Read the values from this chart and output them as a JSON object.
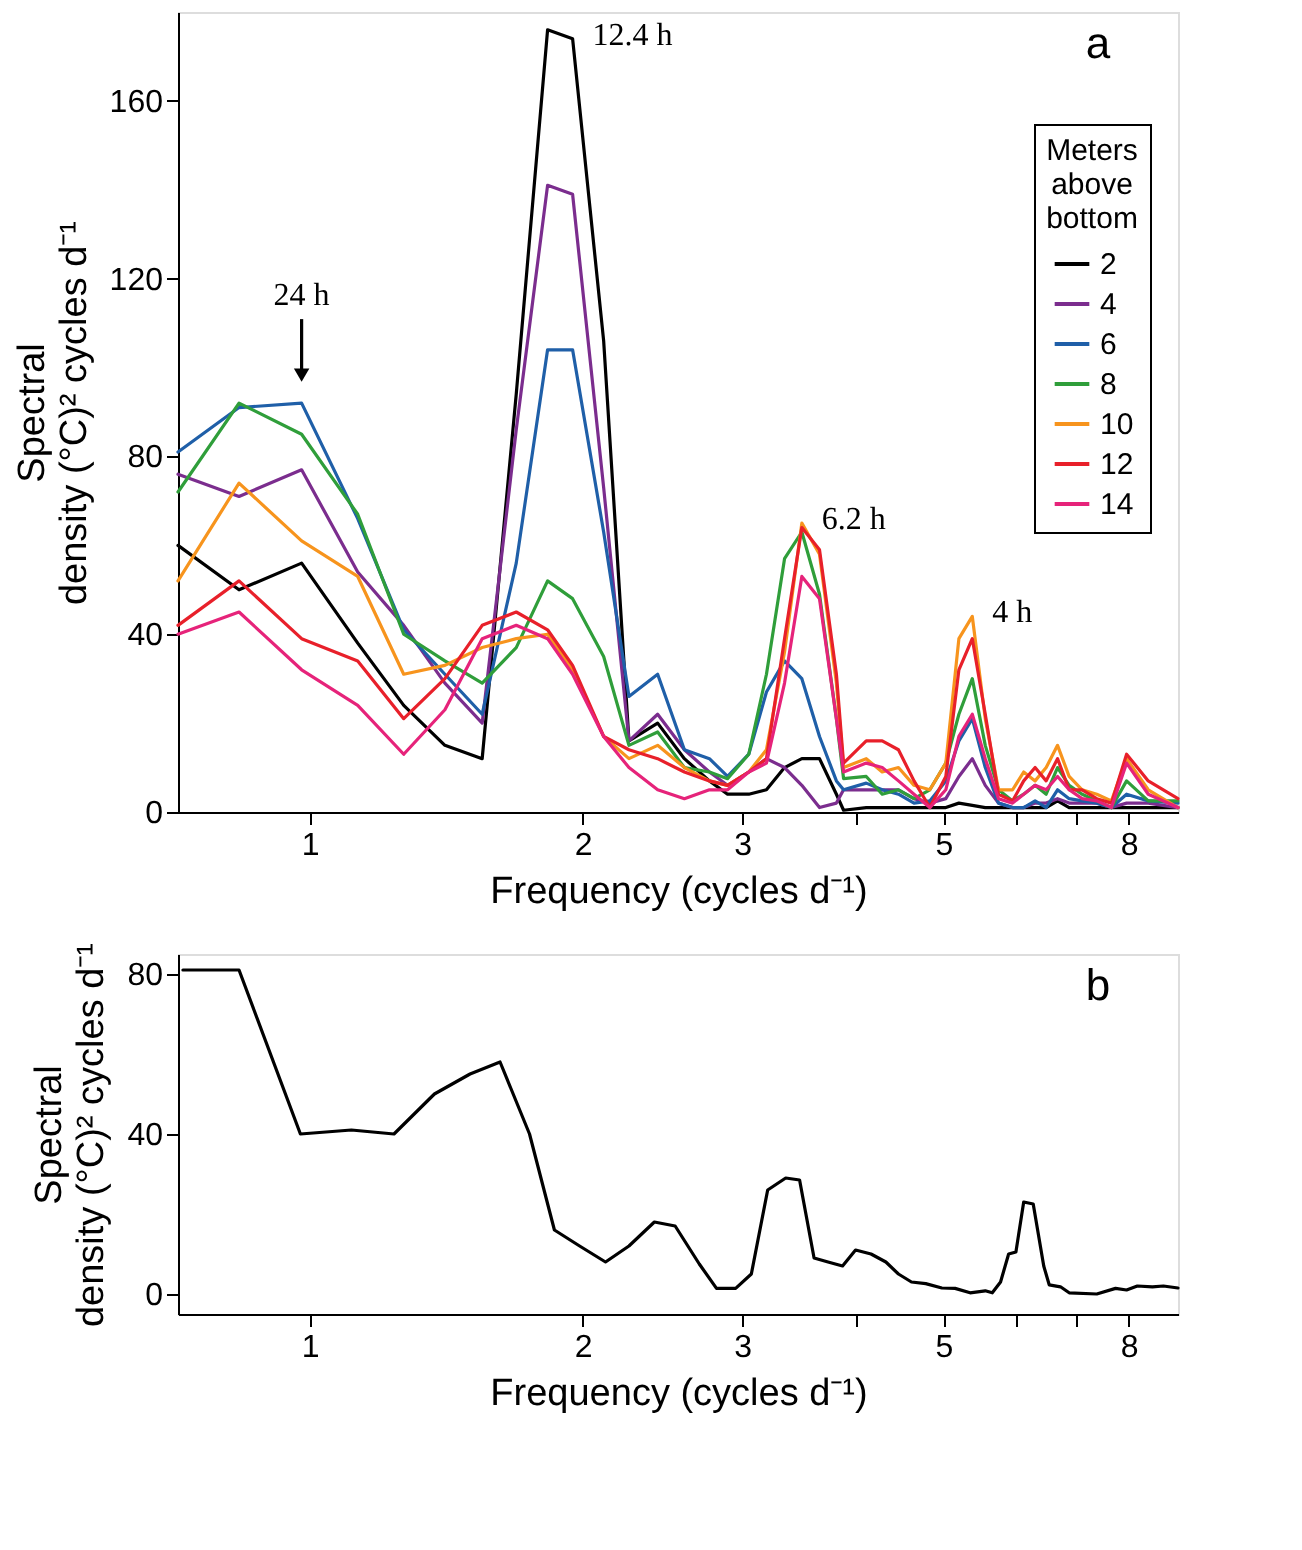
{
  "chart_data": [
    {
      "type": "line",
      "xlabel": "Frequency (cycles d⁻¹)",
      "ylabel": "Spectral density (°C)² cycles d⁻¹",
      "legend_title": "Meters above bottom",
      "legend": "right",
      "grid": false,
      "marker": "none",
      "line_style": "solid",
      "log": "x",
      "x": [
        0.716,
        0.836,
        0.98,
        1.13,
        1.27,
        1.41,
        1.55,
        1.69,
        1.83,
        1.95,
        2.11,
        2.25,
        2.42,
        2.59,
        2.76,
        2.89,
        3.05,
        3.19,
        3.34,
        3.49,
        3.65,
        3.81,
        3.88,
        4.11,
        4.28,
        4.46,
        4.64,
        4.83,
        5.03,
        5.2,
        5.38,
        5.56,
        5.75,
        5.96,
        6.13,
        6.31,
        6.49,
        6.68,
        6.88,
        7.11,
        7.38,
        7.66,
        7.96,
        8.41,
        9.07
      ],
      "xlim": [
        0.716,
        9.07
      ],
      "xticks": [
        1,
        2,
        3,
        {
          "value": 4,
          "label": null
        },
        5,
        {
          "value": 6,
          "label": null
        },
        {
          "value": 7,
          "label": null
        },
        8
      ],
      "ylim": [
        0,
        180
      ],
      "yticks": [
        0,
        40,
        80,
        120,
        160
      ],
      "series": [
        {
          "name": "2",
          "color": "#000000",
          "values": [
            60,
            50,
            56,
            38,
            24,
            15,
            12,
            94,
            176,
            174,
            106,
            16,
            20,
            12,
            7,
            4,
            4,
            5,
            10,
            12,
            12,
            4,
            0.4,
            1,
            1,
            1,
            1,
            1,
            1,
            2,
            1.5,
            1,
            1,
            1,
            1,
            1,
            1,
            2.5,
            1,
            1,
            1,
            1,
            1,
            1,
            1
          ]
        },
        {
          "name": "4",
          "color": "#7b2d8e",
          "values": [
            76,
            71,
            77,
            54,
            42,
            29,
            20,
            86,
            141,
            139,
            73,
            16,
            22,
            14,
            9,
            6,
            9,
            12,
            10,
            6,
            1,
            2,
            5,
            5,
            5,
            5,
            3,
            2,
            3,
            8,
            12,
            6,
            2,
            1,
            1,
            2,
            2,
            3,
            2,
            2,
            2,
            1,
            2,
            2,
            1
          ]
        },
        {
          "name": "6",
          "color": "#1f5fa8",
          "values": [
            81,
            91,
            92,
            66,
            41,
            31,
            22,
            56,
            104,
            104,
            63,
            26,
            31,
            14,
            12,
            8,
            13,
            27,
            34,
            30,
            17,
            7,
            5,
            6.5,
            5,
            4,
            2,
            2.5,
            7,
            16,
            21,
            10,
            2,
            1,
            1,
            2.5,
            1,
            5,
            3,
            2.5,
            2,
            1,
            4,
            2.5,
            2
          ]
        },
        {
          "name": "8",
          "color": "#2f9e3a",
          "values": [
            72,
            92,
            85,
            67,
            40,
            34,
            29,
            37,
            52,
            48,
            35,
            15,
            18,
            10,
            9,
            7.5,
            13,
            31,
            57,
            63,
            49,
            21,
            7.5,
            8,
            4,
            5,
            3,
            5,
            11,
            22,
            30,
            15,
            5,
            2.5,
            4,
            6,
            4,
            10,
            6,
            4,
            2.5,
            1,
            7,
            2.5,
            2.5
          ]
        },
        {
          "name": "10",
          "color": "#f7941d",
          "values": [
            52,
            74,
            61,
            53,
            31,
            33,
            37,
            39,
            40,
            32,
            17,
            12,
            15,
            10,
            7,
            6,
            9,
            14,
            36,
            65,
            58,
            29,
            10,
            12,
            9,
            10,
            6,
            5,
            11,
            39,
            44,
            21,
            5,
            5,
            9,
            7,
            10,
            15,
            8,
            5,
            4,
            2.5,
            12,
            5,
            1
          ]
        },
        {
          "name": "12",
          "color": "#e8202a",
          "values": [
            42,
            52,
            39,
            34,
            21,
            30,
            42,
            45,
            41,
            33,
            17,
            14,
            12,
            9,
            7,
            6,
            9,
            12,
            39,
            64,
            59,
            31,
            11,
            16,
            16,
            14,
            7,
            1,
            8,
            32,
            39,
            22,
            4,
            2.5,
            7,
            10,
            7,
            12,
            5,
            5,
            3,
            2,
            13,
            7,
            3
          ]
        },
        {
          "name": "14",
          "color": "#e6237a",
          "values": [
            40,
            45,
            32,
            24,
            13,
            23,
            39,
            42,
            39,
            31,
            17,
            10,
            5,
            3,
            5,
            5,
            9,
            11,
            29,
            53,
            48,
            21,
            9,
            11,
            10,
            7,
            4,
            1,
            5,
            17,
            22,
            12,
            3,
            2,
            4,
            6,
            5,
            8,
            5,
            3,
            2.5,
            1,
            11,
            4,
            1
          ]
        }
      ],
      "annotations": [
        {
          "text": "24 h",
          "x": 0.98,
          "y": 92
        },
        {
          "text": "12.4 h",
          "x": 1.95,
          "y": 174
        },
        {
          "text": "6.2 h",
          "x": 3.49,
          "y": 65
        },
        {
          "text": "4 h",
          "x": 5.38,
          "y": 44
        },
        "a"
      ]
    },
    {
      "type": "line",
      "xlabel": "Frequency (cycles d⁻¹)",
      "ylabel": "Spectral density (°C)² cycles d⁻¹",
      "grid": false,
      "marker": "none",
      "line_style": "solid",
      "log": "x",
      "x": [
        0.725,
        0.836,
        0.977,
        1.112,
        1.239,
        1.373,
        1.503,
        1.622,
        1.748,
        1.862,
        1.985,
        2.12,
        2.25,
        2.4,
        2.53,
        2.69,
        2.81,
        2.95,
        3.07,
        3.2,
        3.35,
        3.47,
        3.6,
        3.73,
        3.87,
        4.0,
        4.16,
        4.32,
        4.46,
        4.61,
        4.78,
        4.98,
        5.15,
        5.35,
        5.56,
        5.66,
        5.78,
        5.9,
        6.01,
        6.13,
        6.28,
        6.45,
        6.54,
        6.73,
        6.88,
        7.38,
        7.74,
        7.96,
        8.18,
        8.5,
        8.74,
        9.07
      ],
      "xlim": [
        0.716,
        9.07
      ],
      "xticks": [
        1,
        2,
        3,
        {
          "value": 4,
          "label": null
        },
        5,
        {
          "value": 6,
          "label": null
        },
        {
          "value": 7,
          "label": null
        },
        8
      ],
      "ylim": [
        -5,
        85
      ],
      "yticks": [
        0,
        40,
        80
      ],
      "series": [
        {
          "color": "#000000",
          "values": [
            81,
            81,
            40,
            41,
            40,
            50,
            55,
            58,
            40,
            16,
            12,
            8,
            12,
            18,
            17,
            7.5,
            1.4,
            1.4,
            5,
            26,
            29,
            28.5,
            9,
            8,
            7,
            11,
            10,
            8,
            5,
            3,
            2.6,
            1.5,
            1.4,
            0.3,
            0.8,
            0.3,
            3,
            10,
            10.5,
            23,
            22.5,
            7,
            2.3,
            1.8,
            0.3,
            0,
            1.4,
            1,
            2,
            1.8,
            2,
            1.5
          ]
        }
      ],
      "annotations": [
        "b"
      ]
    }
  ]
}
